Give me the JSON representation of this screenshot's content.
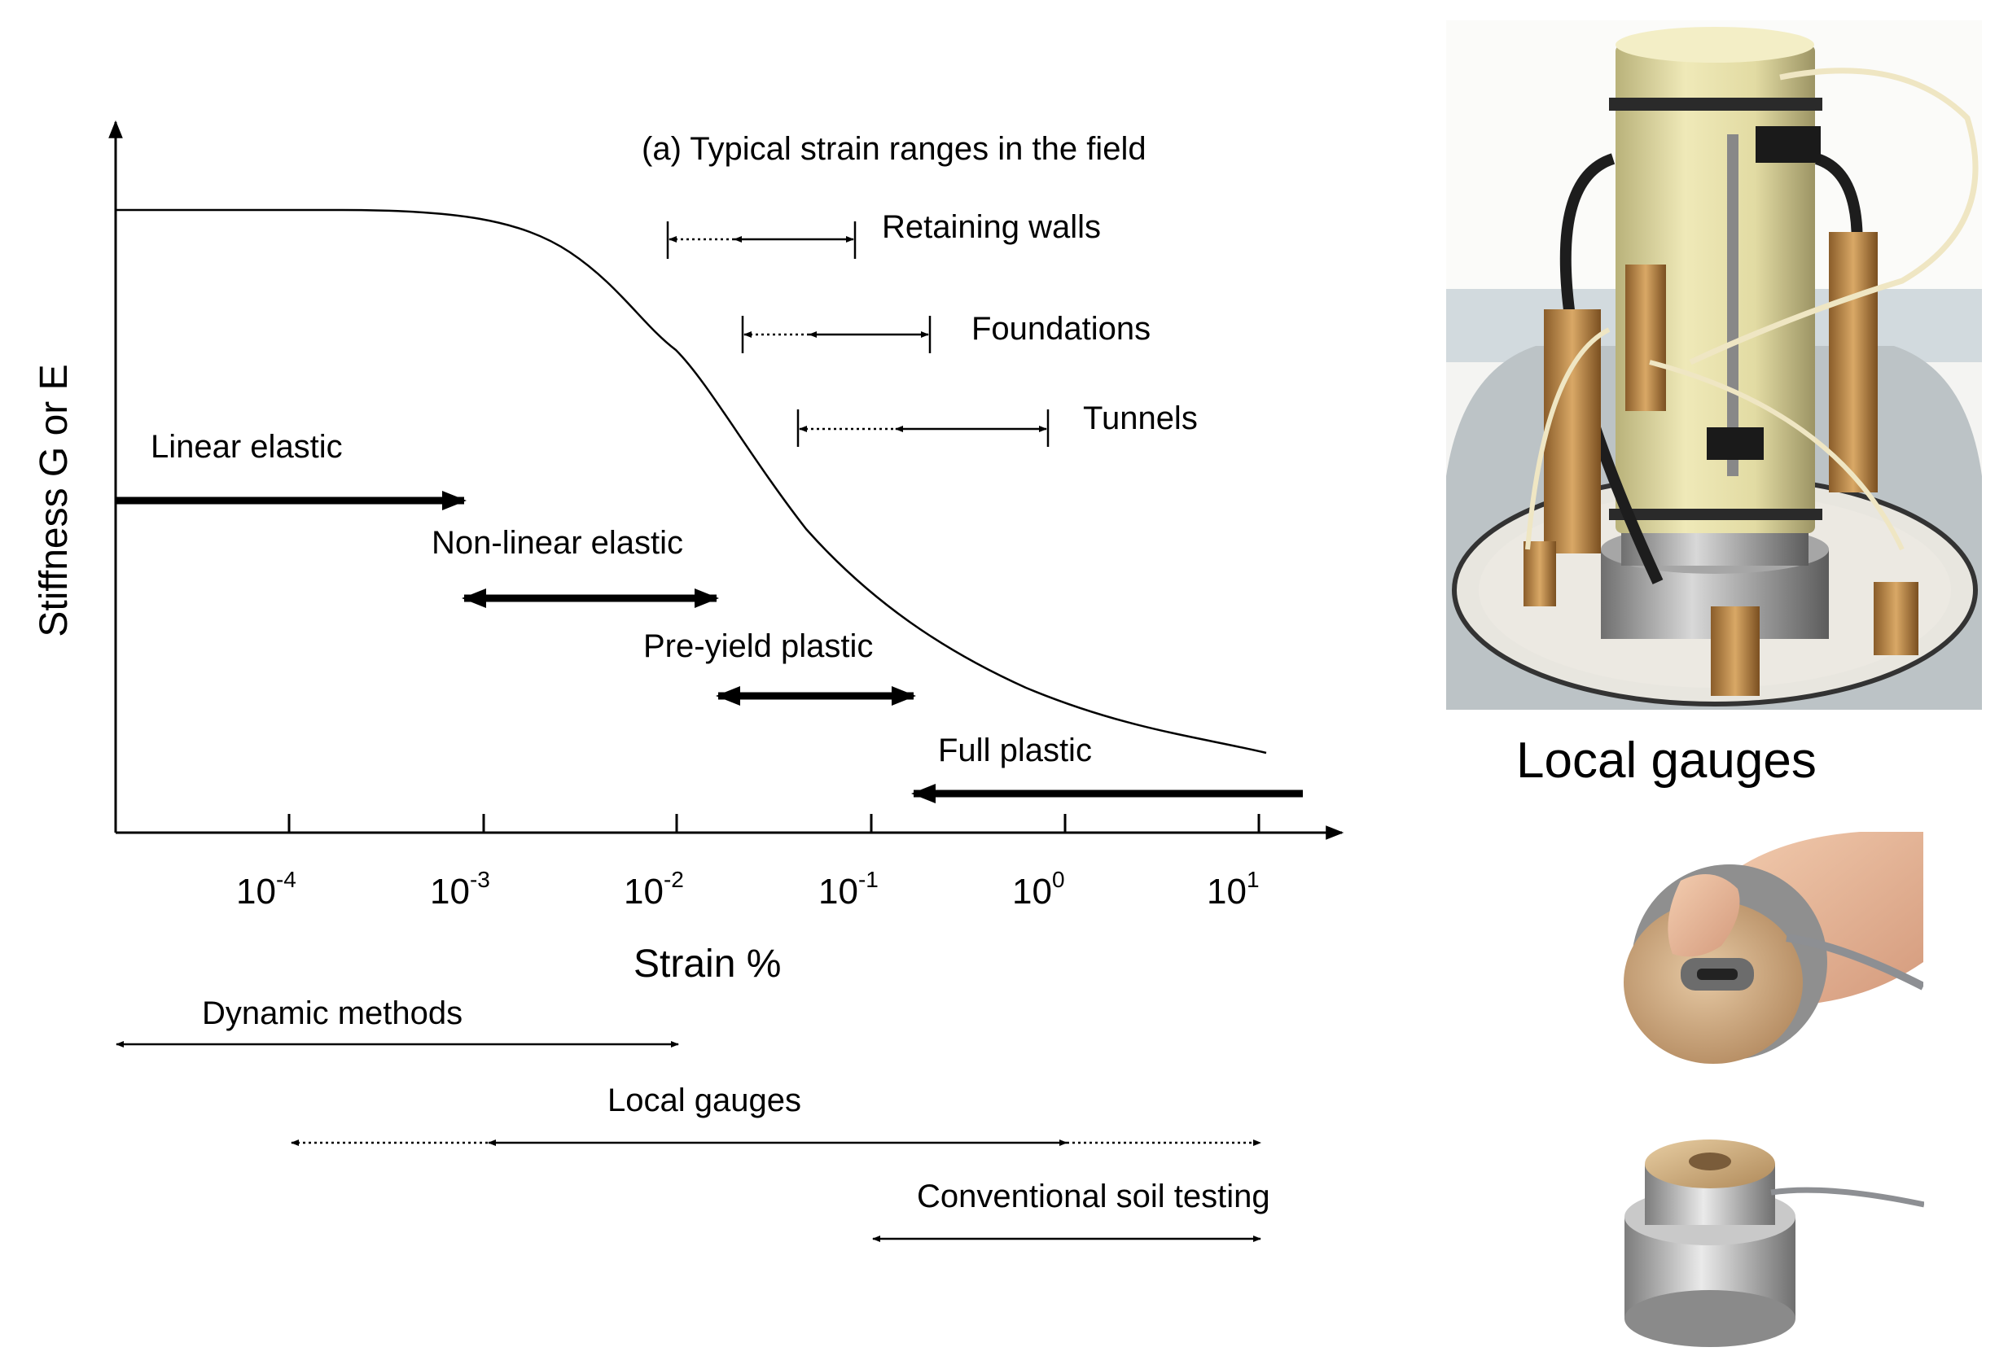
{
  "axes": {
    "y_label": "Stiffness G or E",
    "x_label": "Strain %",
    "x_scale": "log",
    "x_ticks": [
      {
        "base": "10",
        "exp": "-4"
      },
      {
        "base": "10",
        "exp": "-3"
      },
      {
        "base": "10",
        "exp": "-2"
      },
      {
        "base": "10",
        "exp": "-1"
      },
      {
        "base": "10",
        "exp": "0"
      },
      {
        "base": "10",
        "exp": "1"
      }
    ]
  },
  "field_ranges": {
    "title": "(a) Typical strain ranges in the field",
    "items": [
      "Retaining walls",
      "Foundations",
      "Tunnels"
    ]
  },
  "behaviour": {
    "linear": "Linear elastic",
    "nonlinear": "Non-linear elastic",
    "preyield": "Pre-yield plastic",
    "fullplastic": "Full plastic"
  },
  "methods": {
    "dynamic": "Dynamic methods",
    "local": "Local gauges",
    "conventional": "Conventional soil testing"
  },
  "photos": {
    "caption": "Local gauges",
    "apparatus_icon": "triaxial-sample-with-local-gauges-photo",
    "hand_icon": "hand-holding-gauge-photo",
    "sensor_icon": "cylindrical-sensor-photo"
  }
}
